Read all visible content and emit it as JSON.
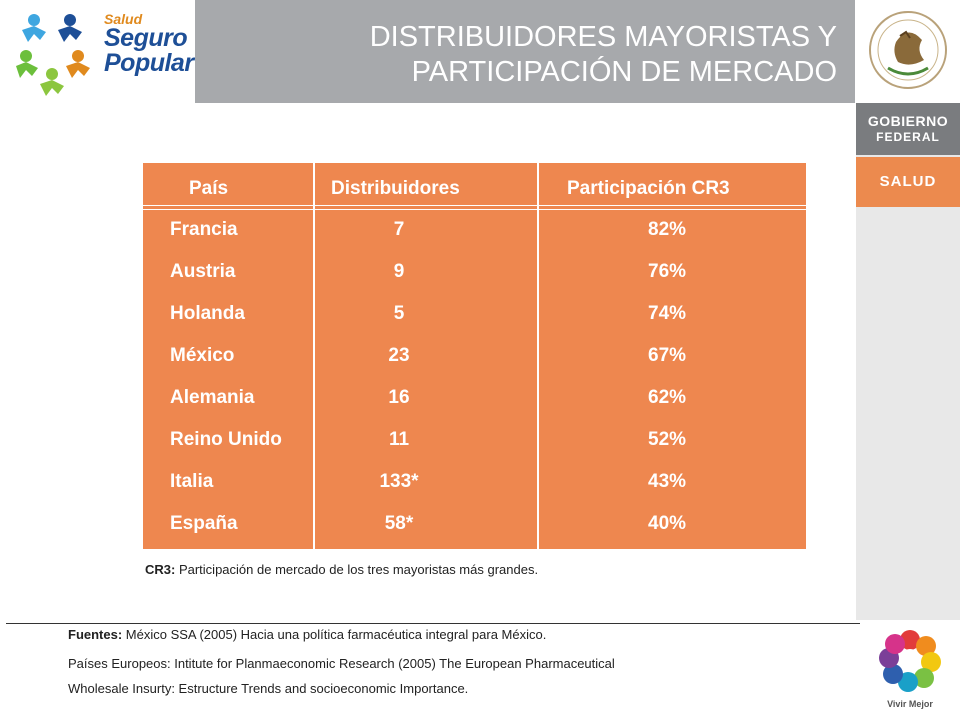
{
  "logo": {
    "line1": "Salud",
    "line2": "Seguro",
    "line3": "Popular"
  },
  "title": {
    "line1": "DISTRIBUIDORES MAYORISTAS Y",
    "line2": "PARTICIPACIÓN DE MERCADO"
  },
  "sidebar": {
    "gobierno": "GOBIERNO",
    "federal": "FEDERAL",
    "salud": "SALUD",
    "vivir_mejor": "Vivir Mejor"
  },
  "table": {
    "headers": [
      "País",
      "Distribuidores",
      "Participación CR3"
    ],
    "rows": [
      {
        "pais": "Francia",
        "distribuidores": "7",
        "participacion": "82%"
      },
      {
        "pais": "Austria",
        "distribuidores": "9",
        "participacion": "76%"
      },
      {
        "pais": "Holanda",
        "distribuidores": "5",
        "participacion": "74%"
      },
      {
        "pais": "México",
        "distribuidores": "23",
        "participacion": "67%"
      },
      {
        "pais": "Alemania",
        "distribuidores": "16",
        "participacion": "62%"
      },
      {
        "pais": "Reino Unido",
        "distribuidores": "11",
        "participacion": "52%"
      },
      {
        "pais": "Italia",
        "distribuidores": "133*",
        "participacion": "43%"
      },
      {
        "pais": "España",
        "distribuidores": "58*",
        "participacion": "40%"
      }
    ]
  },
  "note": {
    "label": "CR3:",
    "text": " Participación de mercado de los tres mayoristas más grandes."
  },
  "sources": {
    "label": "Fuentes:",
    "line1": " México SSA (2005) Hacia una política farmacéutica integral para México.",
    "line2": "Países Europeos: Intitute for Planmaeconomic Research (2005) The European Pharmaceutical",
    "line3": "Wholesale Insurty: Estructure Trends and socioeconomic Importance."
  },
  "colors": {
    "table_bg": "#ee874f",
    "title_band": "#a7a9ac",
    "gobierno_box": "#7a7c7f",
    "salud_box": "#ec8a4e"
  }
}
